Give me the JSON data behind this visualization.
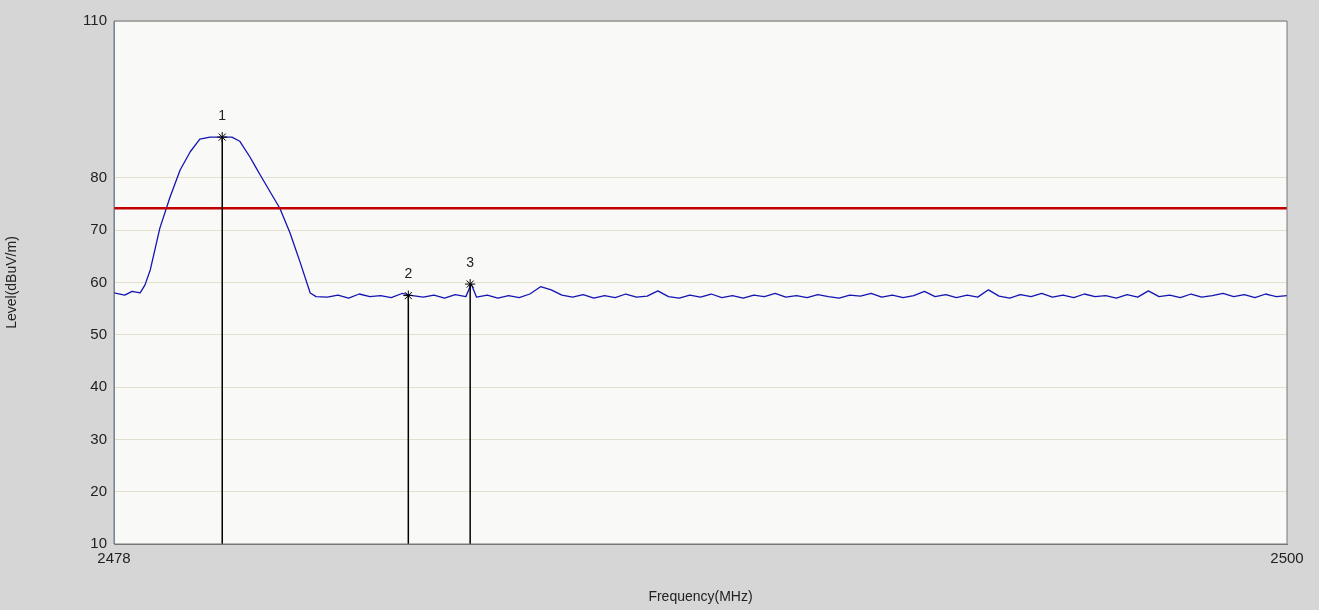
{
  "chart_data": {
    "type": "line",
    "xlabel": "Frequency(MHz)",
    "ylabel": "Level(dBuV/m)",
    "xlim": [
      2478,
      2500
    ],
    "xticks": [
      2478,
      2500
    ],
    "ylim": [
      10,
      110
    ],
    "yticks": [
      10,
      20,
      30,
      40,
      50,
      60,
      70,
      80,
      110
    ],
    "grid": "y",
    "legend": false,
    "marker": "none",
    "line_style": "solid",
    "ref_lines": [
      {
        "axis": "y",
        "value": 74.2,
        "color": "#c00000"
      }
    ],
    "annotations": [
      {
        "text": "1",
        "x": 2480.03,
        "y": 87.8
      },
      {
        "text": "2",
        "x": 2483.52,
        "y": 57.5
      },
      {
        "text": "3",
        "x": 2484.68,
        "y": 59.7
      }
    ],
    "series": [
      {
        "color": "#1414b4",
        "x": [
          2478.0,
          2478.2,
          2478.34,
          2478.49,
          2478.58,
          2478.68,
          2478.86,
          2479.05,
          2479.24,
          2479.43,
          2479.61,
          2479.8,
          2480.03,
          2480.21,
          2480.36,
          2480.55,
          2480.74,
          2480.93,
          2481.11,
          2481.3,
          2481.49,
          2481.68,
          2481.79,
          2482.0,
          2482.2,
          2482.4,
          2482.6,
          2482.8,
          2483.0,
          2483.2,
          2483.4,
          2483.6,
          2483.8,
          2484.0,
          2484.2,
          2484.4,
          2484.6,
          2484.7,
          2484.8,
          2485.0,
          2485.2,
          2485.4,
          2485.6,
          2485.8,
          2486.0,
          2486.2,
          2486.4,
          2486.6,
          2486.8,
          2487.0,
          2487.2,
          2487.4,
          2487.6,
          2487.8,
          2488.0,
          2488.2,
          2488.4,
          2488.6,
          2488.8,
          2489.0,
          2489.2,
          2489.4,
          2489.6,
          2489.8,
          2490.0,
          2490.2,
          2490.4,
          2490.6,
          2490.8,
          2491.0,
          2491.2,
          2491.4,
          2491.6,
          2491.8,
          2492.0,
          2492.2,
          2492.4,
          2492.6,
          2492.8,
          2493.0,
          2493.2,
          2493.4,
          2493.6,
          2493.8,
          2494.0,
          2494.2,
          2494.4,
          2494.6,
          2494.8,
          2495.0,
          2495.2,
          2495.4,
          2495.6,
          2495.8,
          2496.0,
          2496.2,
          2496.4,
          2496.6,
          2496.8,
          2497.0,
          2497.2,
          2497.4,
          2497.6,
          2497.8,
          2498.0,
          2498.2,
          2498.4,
          2498.6,
          2498.8,
          2499.0,
          2499.2,
          2499.4,
          2499.6,
          2499.8,
          2500.0
        ],
        "values": [
          58.0,
          57.6,
          58.3,
          58.0,
          59.5,
          62.4,
          70.4,
          76.3,
          81.5,
          85.0,
          87.4,
          87.8,
          87.8,
          87.8,
          87.0,
          84.0,
          80.6,
          77.3,
          74.2,
          69.5,
          63.9,
          58.0,
          57.3,
          57.2,
          57.6,
          57.0,
          57.8,
          57.3,
          57.5,
          57.1,
          57.9,
          57.5,
          57.2,
          57.6,
          57.0,
          57.7,
          57.3,
          59.7,
          57.2,
          57.6,
          57.0,
          57.5,
          57.1,
          57.8,
          59.2,
          58.6,
          57.6,
          57.2,
          57.7,
          57.0,
          57.5,
          57.1,
          57.8,
          57.2,
          57.4,
          58.4,
          57.3,
          57.0,
          57.6,
          57.2,
          57.8,
          57.1,
          57.5,
          57.0,
          57.6,
          57.3,
          57.9,
          57.2,
          57.5,
          57.1,
          57.7,
          57.3,
          57.0,
          57.6,
          57.4,
          57.9,
          57.2,
          57.6,
          57.1,
          57.5,
          58.3,
          57.3,
          57.7,
          57.1,
          57.6,
          57.2,
          58.6,
          57.4,
          57.0,
          57.7,
          57.3,
          57.9,
          57.2,
          57.6,
          57.1,
          57.8,
          57.3,
          57.5,
          57.0,
          57.7,
          57.2,
          58.4,
          57.3,
          57.6,
          57.1,
          57.8,
          57.2,
          57.5,
          57.9,
          57.3,
          57.7,
          57.1,
          57.8,
          57.3,
          57.5
        ]
      }
    ]
  }
}
